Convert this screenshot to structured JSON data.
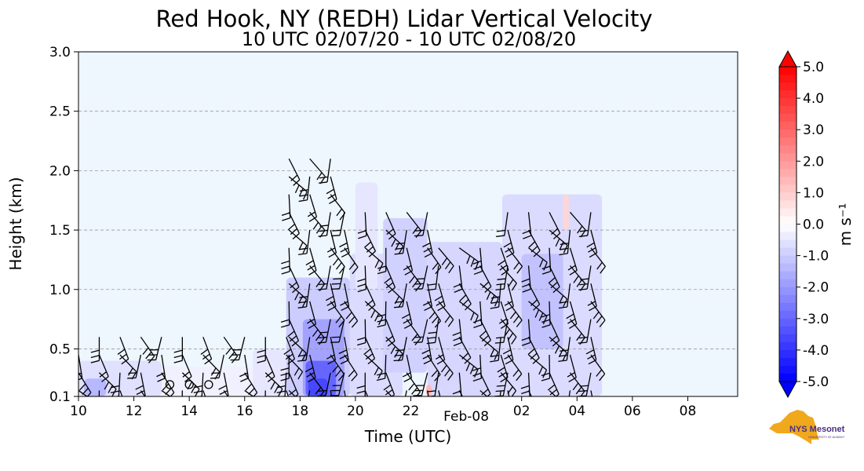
{
  "chart_data": {
    "type": "heatmap",
    "title": "Red Hook, NY (REDH) Lidar Vertical Velocity",
    "subtitle": "10 UTC 02/07/20 - 10 UTC 02/08/20",
    "xlabel": "Time (UTC)",
    "ylabel": "Height (km)",
    "x_ticks": [
      {
        "hour": 10,
        "label": "10"
      },
      {
        "hour": 12,
        "label": "12"
      },
      {
        "hour": 14,
        "label": "14"
      },
      {
        "hour": 16,
        "label": "16"
      },
      {
        "hour": 18,
        "label": "18"
      },
      {
        "hour": 20,
        "label": "20"
      },
      {
        "hour": 22,
        "label": "22"
      },
      {
        "hour": 26,
        "label": "02"
      },
      {
        "hour": 28,
        "label": "04"
      },
      {
        "hour": 30,
        "label": "06"
      },
      {
        "hour": 32,
        "label": "08"
      }
    ],
    "x_date_label": {
      "hour": 24,
      "label": "Feb-08"
    },
    "xlim": [
      10,
      33.8
    ],
    "y_ticks": [
      0.1,
      0.5,
      1.0,
      1.5,
      2.0,
      2.5,
      3.0
    ],
    "y_tick_labels": [
      "0.1",
      "0.5",
      "1.0",
      "1.5",
      "2.0",
      "2.5",
      "3.0"
    ],
    "ylim": [
      0.1,
      3.0
    ],
    "grid": "horizontal dashed",
    "background_color": "#eef6fe",
    "colorbar": {
      "label": "m s⁻¹",
      "min": -5.0,
      "max": 5.0,
      "ticks": [
        "5.0",
        "4.0",
        "3.0",
        "2.0",
        "1.0",
        "0.0",
        "-1.0",
        "-2.0",
        "-3.0",
        "-4.0",
        "-5.0"
      ],
      "colormap": "bwr",
      "extend": "both"
    },
    "velocity_regions": [
      {
        "hours": [
          10.0,
          13.0
        ],
        "heights": [
          0.1,
          0.4
        ],
        "w": -0.6
      },
      {
        "hours": [
          10.2,
          11.0
        ],
        "heights": [
          0.1,
          0.25
        ],
        "w": -1.4
      },
      {
        "hours": [
          13.0,
          16.5
        ],
        "heights": [
          0.1,
          0.35
        ],
        "w": -0.3
      },
      {
        "hours": [
          16.3,
          17.5
        ],
        "heights": [
          0.1,
          0.5
        ],
        "w": -0.5
      },
      {
        "hours": [
          17.5,
          19.8
        ],
        "heights": [
          0.1,
          1.1
        ],
        "w": -1.0
      },
      {
        "hours": [
          18.1,
          19.6
        ],
        "heights": [
          0.1,
          0.75
        ],
        "w": -1.8
      },
      {
        "hours": [
          18.2,
          19.3
        ],
        "heights": [
          0.1,
          0.4
        ],
        "w": -3.0
      },
      {
        "hours": [
          18.3,
          19.0
        ],
        "heights": [
          0.1,
          0.25
        ],
        "w": -3.6
      },
      {
        "hours": [
          19.8,
          21.7
        ],
        "heights": [
          0.1,
          1.3
        ],
        "w": -0.7
      },
      {
        "hours": [
          20.0,
          20.8
        ],
        "heights": [
          1.0,
          1.9
        ],
        "w": -0.5
      },
      {
        "hours": [
          21.0,
          22.6
        ],
        "heights": [
          0.3,
          1.6
        ],
        "w": -0.9
      },
      {
        "hours": [
          22.6,
          25.3
        ],
        "heights": [
          0.1,
          1.4
        ],
        "w": -0.8
      },
      {
        "hours": [
          25.3,
          28.9
        ],
        "heights": [
          0.1,
          1.8
        ],
        "w": -0.7
      },
      {
        "hours": [
          26.0,
          27.5
        ],
        "heights": [
          0.5,
          1.3
        ],
        "w": -1.2
      },
      {
        "hours": [
          22.55,
          22.75
        ],
        "heights": [
          0.1,
          0.2
        ],
        "w": 1.4
      },
      {
        "hours": [
          27.5,
          27.7
        ],
        "heights": [
          1.5,
          1.8
        ],
        "w": 0.8
      }
    ]
  },
  "logo": {
    "text": "NYS Mesonet",
    "subtext": "UNIVERSITY AT ALBANY",
    "colors": {
      "state": "#f0a81c",
      "text": "#4b2e83"
    }
  },
  "colors": {
    "plot_background": "#eef6fe",
    "grid": "#9a9a9a",
    "barbs": "#000000"
  }
}
